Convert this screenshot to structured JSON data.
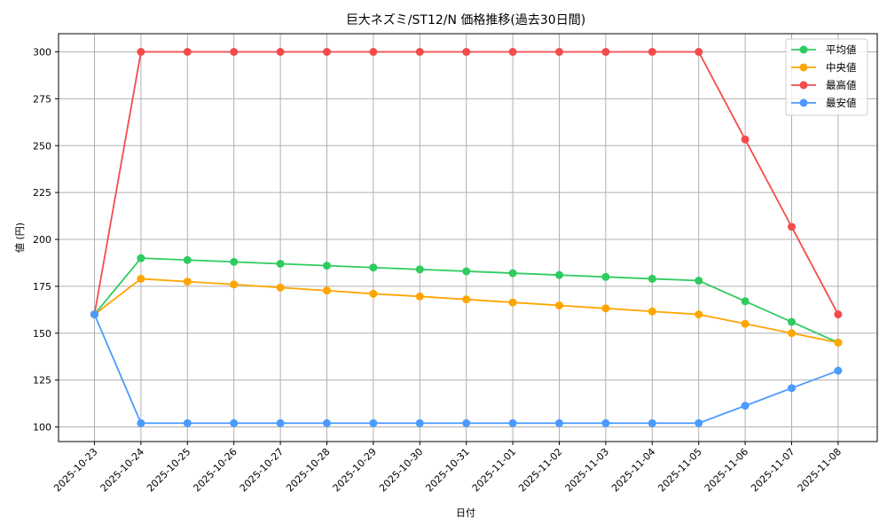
{
  "chart_data": {
    "type": "line",
    "title": "巨大ネズミ/ST12/N 価格推移(過去30日間)",
    "xlabel": "日付",
    "ylabel": "値 (円)",
    "ylim": [
      92,
      310
    ],
    "yticks": [
      100,
      125,
      150,
      175,
      200,
      225,
      250,
      275,
      300
    ],
    "grid": true,
    "legend_position": "upper right",
    "categories": [
      "2025-10-23",
      "2025-10-24",
      "2025-10-25",
      "2025-10-26",
      "2025-10-27",
      "2025-10-28",
      "2025-10-29",
      "2025-10-30",
      "2025-10-31",
      "2025-11-01",
      "2025-11-02",
      "2025-11-03",
      "2025-11-04",
      "2025-11-05",
      "2025-11-06",
      "2025-11-07",
      "2025-11-08"
    ],
    "series": [
      {
        "name": "平均値",
        "color": "#2ecc5f",
        "values": [
          160,
          190,
          189,
          188,
          187,
          186,
          185,
          184,
          183,
          182,
          181,
          180,
          179,
          178,
          167,
          156,
          145
        ]
      },
      {
        "name": "中央値",
        "color": "#ffa500",
        "values": [
          160,
          179,
          177.5,
          176,
          174.3,
          172.7,
          171,
          169.6,
          168,
          166.4,
          164.8,
          163.2,
          161.6,
          160,
          155,
          150,
          145
        ]
      },
      {
        "name": "最高値",
        "color": "#f44b4b",
        "values": [
          160,
          300,
          300,
          300,
          300,
          300,
          300,
          300,
          300,
          300,
          300,
          300,
          300,
          300,
          253.3,
          206.7,
          160
        ]
      },
      {
        "name": "最安値",
        "color": "#4b9bff",
        "values": [
          160,
          102,
          102,
          102,
          102,
          102,
          102,
          102,
          102,
          102,
          102,
          102,
          102,
          102,
          111.3,
          120.7,
          130
        ]
      }
    ]
  }
}
